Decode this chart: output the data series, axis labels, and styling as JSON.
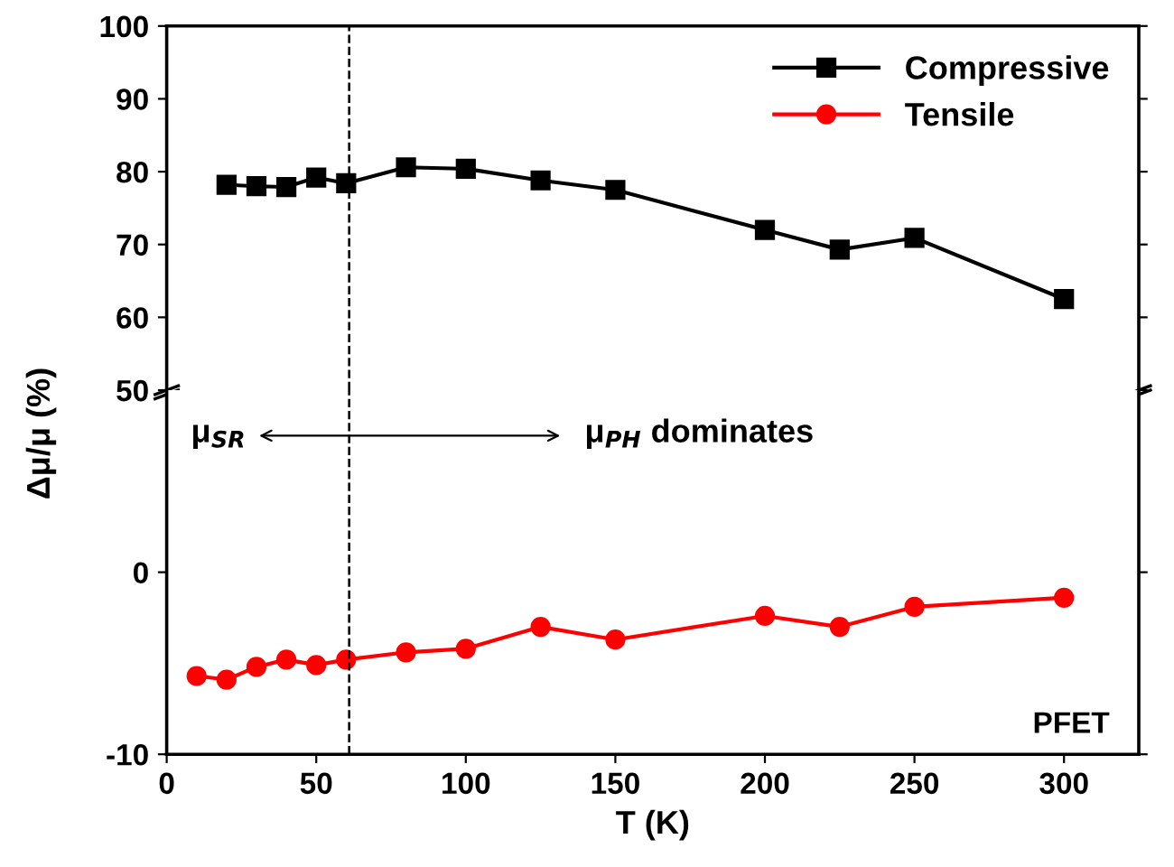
{
  "chart_data": [
    {
      "type": "line",
      "ylabel": "Δμ/μ (%)",
      "xlim": [
        0,
        325
      ],
      "xticks": [
        0,
        50,
        100,
        150,
        200,
        250,
        300
      ],
      "ylim": [
        50,
        100
      ],
      "yticks": [
        50,
        60,
        70,
        80,
        90,
        100
      ],
      "tick_labels": "y",
      "legend": "top right",
      "marker": "square",
      "grid": false,
      "series": [
        {
          "name": "Compressive",
          "color": "#000000",
          "x": [
            20,
            30,
            40,
            50,
            60,
            80,
            100,
            125,
            150,
            200,
            225,
            250,
            300
          ],
          "values": [
            78.2,
            78.0,
            77.9,
            79.2,
            78.4,
            80.6,
            80.4,
            78.8,
            77.5,
            72.0,
            69.3,
            70.9,
            62.5
          ]
        }
      ],
      "ref_lines": [
        {
          "axis": "x",
          "value": 61,
          "line_style": "dashed",
          "color": "#000000"
        }
      ]
    },
    {
      "type": "line",
      "xlabel": "T (K)",
      "xlim": [
        0,
        325
      ],
      "xticks": [
        0,
        50,
        100,
        150,
        200,
        250,
        300
      ],
      "ylim": [
        -10,
        10
      ],
      "yticks": [
        -10,
        0
      ],
      "marker": "circle",
      "grid": false,
      "series": [
        {
          "name": "Tensile",
          "color": "#ff0000",
          "x": [
            10,
            20,
            30,
            40,
            50,
            60,
            80,
            100,
            125,
            150,
            200,
            225,
            250,
            300
          ],
          "values": [
            -5.7,
            -5.9,
            -5.2,
            -4.8,
            -5.1,
            -4.8,
            -4.4,
            -4.2,
            -3.0,
            -3.7,
            -2.4,
            -3.0,
            -1.9,
            -1.4
          ]
        }
      ],
      "ref_lines": [
        {
          "axis": "x",
          "value": 61,
          "line_style": "dashed",
          "color": "#000000"
        }
      ],
      "annotations": [
        "μ$_{SR}$",
        "μ$_{PH}$ dominates",
        "PFET"
      ]
    }
  ]
}
